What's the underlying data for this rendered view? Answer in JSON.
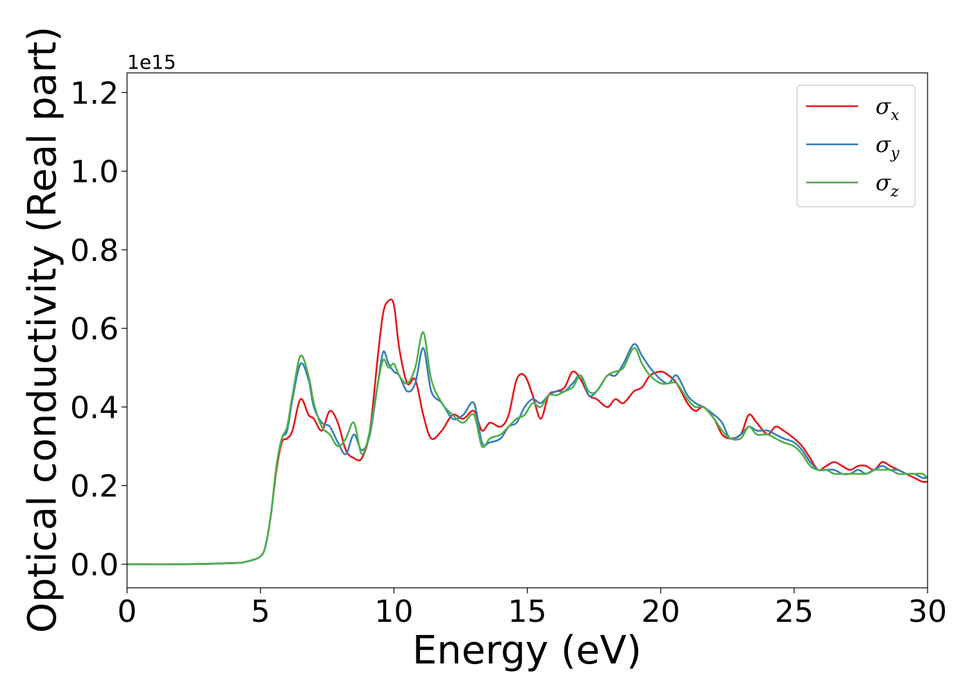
{
  "chart_data": {
    "type": "line",
    "title": "",
    "xlabel": "Energy (eV)",
    "ylabel": "Optical conductivity (Real part)",
    "y_offset_text": "1e15",
    "xlim": [
      0,
      30
    ],
    "ylim": [
      -0.06,
      1.25
    ],
    "xticks": [
      0,
      5,
      10,
      15,
      20,
      25,
      30
    ],
    "xtick_labels": [
      "0",
      "5",
      "10",
      "15",
      "20",
      "25",
      "30"
    ],
    "yticks": [
      0.0,
      0.2,
      0.4,
      0.6,
      0.8,
      1.0,
      1.2
    ],
    "ytick_labels": [
      "0.0",
      "0.2",
      "0.4",
      "0.6",
      "0.8",
      "1.0",
      "1.2"
    ],
    "grid": false,
    "legend_position": "top-right",
    "series": [
      {
        "name": "σx",
        "label_main": "σ",
        "label_sub": "x",
        "color": "#e41a1c",
        "x": [
          0,
          2,
          4,
          4.5,
          5,
          5.2,
          5.4,
          5.6,
          5.8,
          6.0,
          6.2,
          6.5,
          6.8,
          7.0,
          7.3,
          7.6,
          7.9,
          8.2,
          8.5,
          8.8,
          9.1,
          9.4,
          9.6,
          9.8,
          10.0,
          10.2,
          10.5,
          10.8,
          11.1,
          11.4,
          11.8,
          12.2,
          12.6,
          13.0,
          13.3,
          13.6,
          14.0,
          14.3,
          14.6,
          14.9,
          15.2,
          15.5,
          15.8,
          16.1,
          16.4,
          16.7,
          17.0,
          17.3,
          17.6,
          18.0,
          18.3,
          18.6,
          19.0,
          19.3,
          19.6,
          20.0,
          20.3,
          20.6,
          21.0,
          21.3,
          21.6,
          22.0,
          22.3,
          22.6,
          23.0,
          23.3,
          23.6,
          24.0,
          24.3,
          24.6,
          25.0,
          25.3,
          25.6,
          25.9,
          26.2,
          26.5,
          26.8,
          27.1,
          27.4,
          27.7,
          28.0,
          28.3,
          28.6,
          28.9,
          29.2,
          29.5,
          29.8,
          30.0
        ],
        "y": [
          0.0,
          0.0,
          0.003,
          0.007,
          0.02,
          0.05,
          0.13,
          0.24,
          0.31,
          0.32,
          0.34,
          0.42,
          0.38,
          0.37,
          0.34,
          0.39,
          0.36,
          0.29,
          0.27,
          0.27,
          0.34,
          0.53,
          0.64,
          0.67,
          0.66,
          0.55,
          0.46,
          0.47,
          0.38,
          0.32,
          0.34,
          0.38,
          0.37,
          0.39,
          0.34,
          0.36,
          0.35,
          0.38,
          0.47,
          0.48,
          0.43,
          0.37,
          0.43,
          0.44,
          0.45,
          0.49,
          0.47,
          0.43,
          0.42,
          0.4,
          0.42,
          0.41,
          0.44,
          0.45,
          0.48,
          0.49,
          0.48,
          0.46,
          0.41,
          0.39,
          0.4,
          0.37,
          0.33,
          0.32,
          0.33,
          0.38,
          0.36,
          0.33,
          0.35,
          0.34,
          0.32,
          0.3,
          0.27,
          0.24,
          0.25,
          0.26,
          0.25,
          0.24,
          0.25,
          0.25,
          0.24,
          0.26,
          0.25,
          0.24,
          0.23,
          0.22,
          0.21,
          0.21
        ]
      },
      {
        "name": "σy",
        "label_main": "σ",
        "label_sub": "y",
        "color": "#377eb8",
        "x": [
          0,
          2,
          4,
          4.5,
          5,
          5.2,
          5.4,
          5.6,
          5.8,
          6.0,
          6.2,
          6.5,
          6.8,
          7.0,
          7.3,
          7.6,
          7.9,
          8.2,
          8.5,
          8.8,
          9.1,
          9.4,
          9.6,
          9.8,
          10.0,
          10.2,
          10.5,
          10.8,
          11.1,
          11.4,
          11.8,
          12.2,
          12.6,
          13.0,
          13.3,
          13.6,
          14.0,
          14.3,
          14.6,
          14.9,
          15.2,
          15.5,
          15.8,
          16.1,
          16.4,
          16.7,
          17.0,
          17.3,
          17.6,
          18.0,
          18.3,
          18.6,
          19.0,
          19.3,
          19.6,
          20.0,
          20.3,
          20.6,
          21.0,
          21.3,
          21.6,
          22.0,
          22.3,
          22.6,
          23.0,
          23.3,
          23.6,
          24.0,
          24.3,
          24.6,
          25.0,
          25.3,
          25.6,
          25.9,
          26.2,
          26.5,
          26.8,
          27.1,
          27.4,
          27.7,
          28.0,
          28.3,
          28.6,
          28.9,
          29.2,
          29.5,
          29.8,
          30.0
        ],
        "y": [
          0.0,
          0.0,
          0.003,
          0.007,
          0.02,
          0.05,
          0.13,
          0.25,
          0.32,
          0.34,
          0.42,
          0.51,
          0.47,
          0.4,
          0.36,
          0.35,
          0.31,
          0.28,
          0.33,
          0.29,
          0.33,
          0.46,
          0.54,
          0.51,
          0.49,
          0.48,
          0.44,
          0.46,
          0.55,
          0.44,
          0.41,
          0.37,
          0.38,
          0.41,
          0.31,
          0.31,
          0.32,
          0.35,
          0.36,
          0.4,
          0.42,
          0.41,
          0.43,
          0.44,
          0.44,
          0.46,
          0.48,
          0.43,
          0.44,
          0.48,
          0.48,
          0.51,
          0.56,
          0.53,
          0.5,
          0.47,
          0.46,
          0.48,
          0.43,
          0.41,
          0.4,
          0.38,
          0.36,
          0.32,
          0.33,
          0.35,
          0.34,
          0.34,
          0.33,
          0.32,
          0.31,
          0.29,
          0.26,
          0.24,
          0.24,
          0.24,
          0.23,
          0.23,
          0.24,
          0.23,
          0.24,
          0.25,
          0.24,
          0.24,
          0.23,
          0.23,
          0.22,
          0.22
        ]
      },
      {
        "name": "σz",
        "label_main": "σ",
        "label_sub": "z",
        "color": "#4daf4a",
        "x": [
          0,
          2,
          4,
          4.5,
          5,
          5.2,
          5.4,
          5.6,
          5.8,
          6.0,
          6.2,
          6.5,
          6.8,
          7.0,
          7.3,
          7.6,
          7.9,
          8.2,
          8.5,
          8.8,
          9.1,
          9.4,
          9.6,
          9.8,
          10.0,
          10.2,
          10.5,
          10.8,
          11.1,
          11.4,
          11.8,
          12.2,
          12.6,
          13.0,
          13.3,
          13.6,
          14.0,
          14.3,
          14.6,
          14.9,
          15.2,
          15.5,
          15.8,
          16.1,
          16.4,
          16.7,
          17.0,
          17.3,
          17.6,
          18.0,
          18.3,
          18.6,
          19.0,
          19.3,
          19.6,
          20.0,
          20.3,
          20.6,
          21.0,
          21.3,
          21.6,
          22.0,
          22.3,
          22.6,
          23.0,
          23.3,
          23.6,
          24.0,
          24.3,
          24.6,
          25.0,
          25.3,
          25.6,
          25.9,
          26.2,
          26.5,
          26.8,
          27.1,
          27.4,
          27.7,
          28.0,
          28.3,
          28.6,
          28.9,
          29.2,
          29.5,
          29.8,
          30.0
        ],
        "y": [
          0.0,
          0.0,
          0.003,
          0.007,
          0.02,
          0.05,
          0.13,
          0.25,
          0.32,
          0.35,
          0.43,
          0.53,
          0.48,
          0.41,
          0.35,
          0.33,
          0.3,
          0.32,
          0.36,
          0.28,
          0.34,
          0.46,
          0.52,
          0.5,
          0.51,
          0.48,
          0.46,
          0.5,
          0.59,
          0.47,
          0.41,
          0.38,
          0.36,
          0.38,
          0.3,
          0.32,
          0.33,
          0.35,
          0.37,
          0.38,
          0.41,
          0.4,
          0.43,
          0.43,
          0.44,
          0.45,
          0.48,
          0.44,
          0.44,
          0.48,
          0.49,
          0.5,
          0.55,
          0.51,
          0.48,
          0.46,
          0.46,
          0.46,
          0.42,
          0.4,
          0.4,
          0.37,
          0.34,
          0.32,
          0.32,
          0.35,
          0.33,
          0.33,
          0.32,
          0.31,
          0.3,
          0.28,
          0.25,
          0.24,
          0.24,
          0.23,
          0.23,
          0.23,
          0.23,
          0.23,
          0.24,
          0.24,
          0.24,
          0.23,
          0.23,
          0.23,
          0.23,
          0.22
        ]
      }
    ]
  }
}
